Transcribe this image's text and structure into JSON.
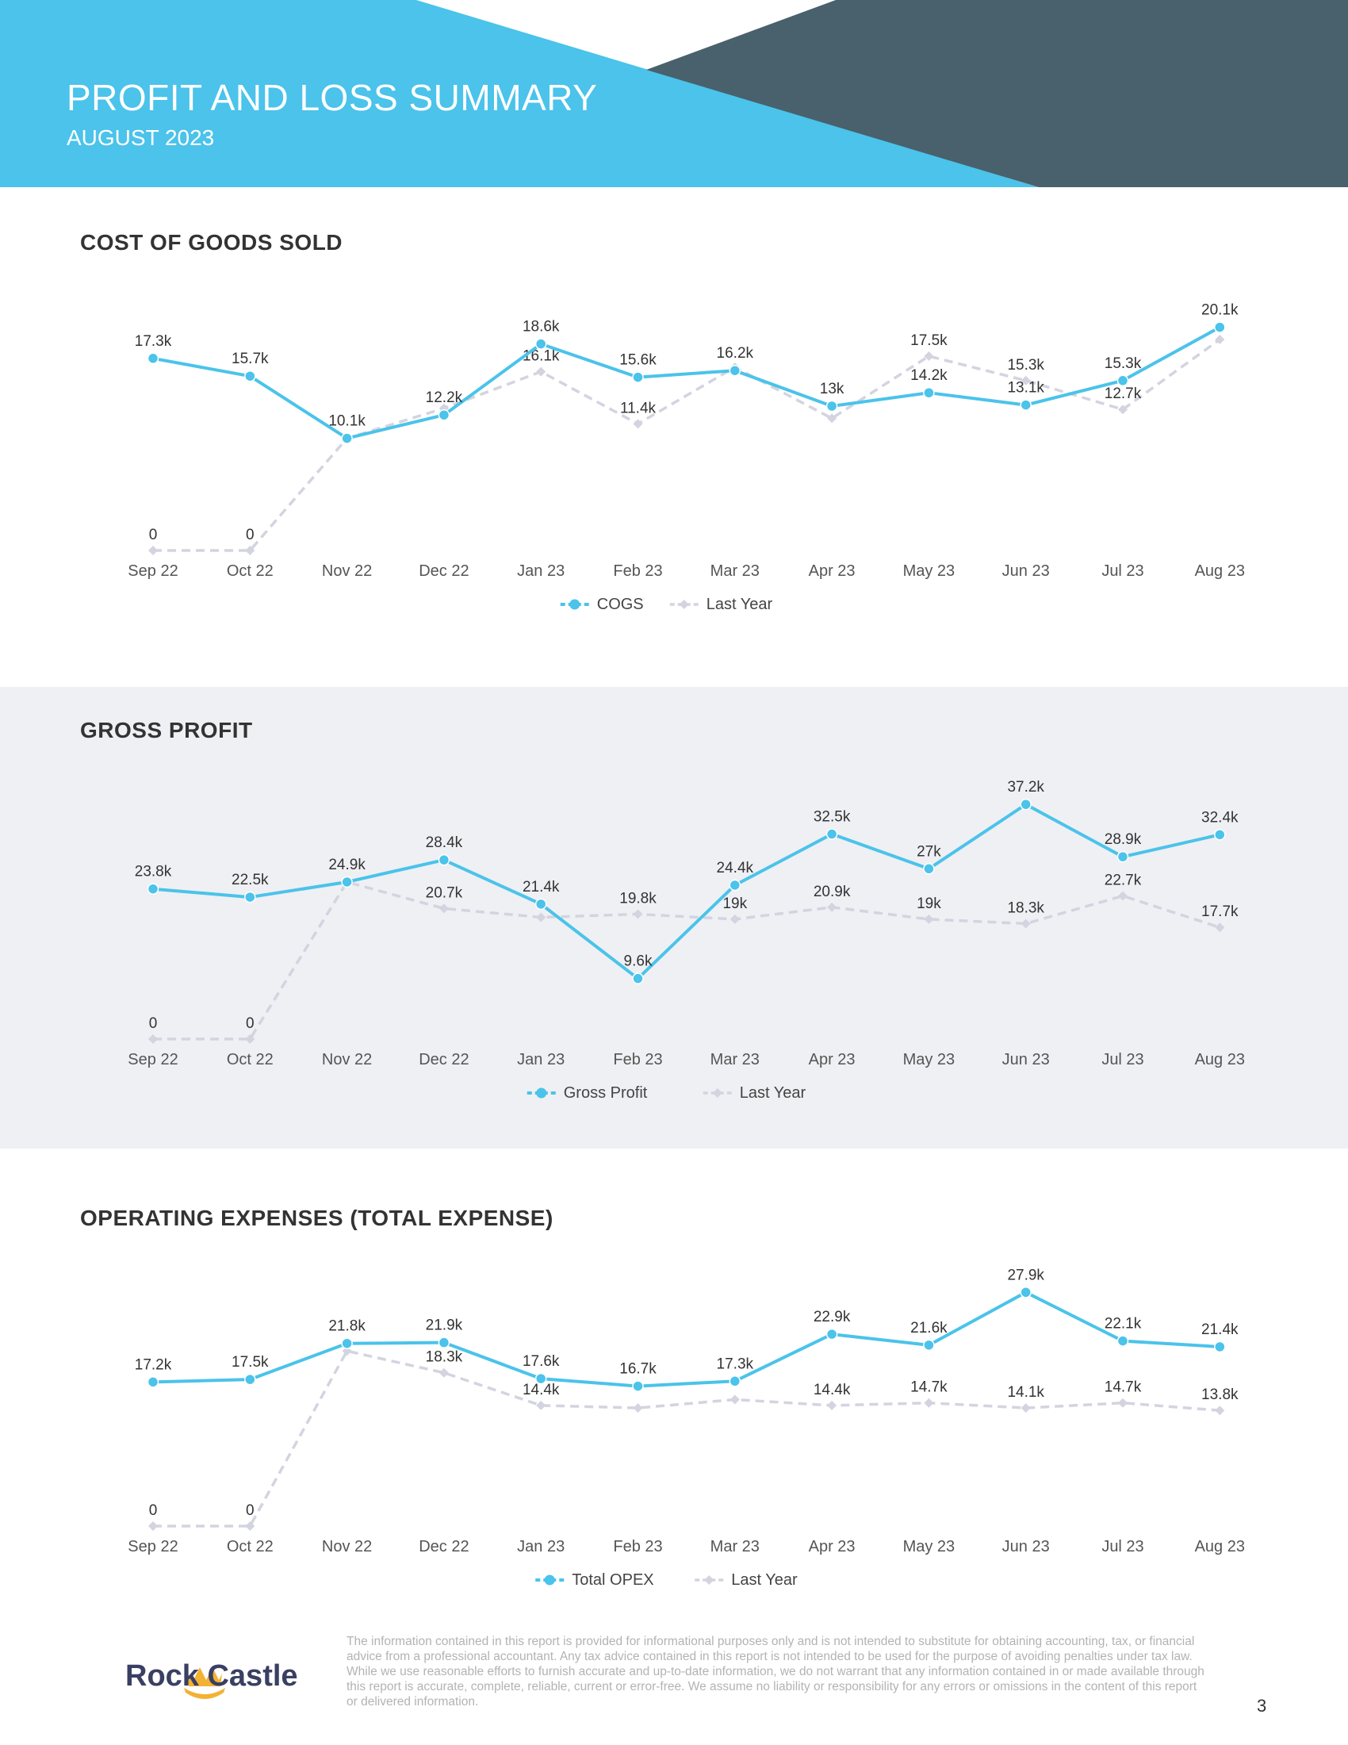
{
  "header": {
    "title": "PROFIT AND LOSS SUMMARY",
    "subtitle": "AUGUST 2023",
    "colors": {
      "primary": "#4bc3ea",
      "dark": "#48616c"
    }
  },
  "chart_data": [
    {
      "type": "line",
      "title": "COST OF GOODS SOLD",
      "categories": [
        "Sep 22",
        "Oct 22",
        "Nov 22",
        "Dec 22",
        "Jan 23",
        "Feb 23",
        "Mar 23",
        "Apr 23",
        "May 23",
        "Jun 23",
        "Jul 23",
        "Aug 23"
      ],
      "series": [
        {
          "name": "COGS",
          "values": [
            17300,
            15700,
            10100,
            12200,
            18600,
            15600,
            16200,
            13000,
            14200,
            13100,
            15300,
            20100
          ],
          "labels": [
            "17.3k",
            "15.7k",
            "10.1k",
            "12.2k",
            "18.6k",
            "15.6k",
            "16.2k",
            "13k",
            "14.2k",
            "13.1k",
            "15.3k",
            "20.1k"
          ]
        },
        {
          "name": "Last Year",
          "values": [
            0,
            0,
            10100,
            12800,
            16100,
            11400,
            16500,
            11900,
            17500,
            15300,
            12700,
            19000
          ],
          "labels": [
            "0",
            "0",
            "",
            "",
            "16.1k",
            "11.4k",
            "",
            "",
            "17.5k",
            "15.3k",
            "12.7k",
            ""
          ]
        }
      ],
      "ylim": [
        0,
        23000
      ]
    },
    {
      "type": "line",
      "title": "GROSS PROFIT",
      "categories": [
        "Sep 22",
        "Oct 22",
        "Nov 22",
        "Dec 22",
        "Jan 23",
        "Feb 23",
        "Mar 23",
        "Apr 23",
        "May 23",
        "Jun 23",
        "Jul 23",
        "Aug 23"
      ],
      "series": [
        {
          "name": "Gross Profit",
          "values": [
            23800,
            22500,
            24900,
            28400,
            21400,
            9600,
            24400,
            32500,
            27000,
            37200,
            28900,
            32400
          ],
          "labels": [
            "23.8k",
            "22.5k",
            "24.9k",
            "28.4k",
            "21.4k",
            "9.6k",
            "24.4k",
            "32.5k",
            "27k",
            "37.2k",
            "28.9k",
            "32.4k"
          ]
        },
        {
          "name": "Last Year",
          "values": [
            0,
            0,
            24900,
            20700,
            19300,
            19800,
            19000,
            20900,
            19000,
            18300,
            22700,
            17700
          ],
          "labels": [
            "0",
            "0",
            "",
            "20.7k",
            "",
            "19.8k",
            "19k",
            "20.9k",
            "19k",
            "18.3k",
            "22.7k",
            "17.7k"
          ]
        }
      ],
      "ylim": [
        0,
        42000
      ]
    },
    {
      "type": "line",
      "title": "OPERATING EXPENSES (TOTAL EXPENSE)",
      "categories": [
        "Sep 22",
        "Oct 22",
        "Nov 22",
        "Dec 22",
        "Jan 23",
        "Feb 23",
        "Mar 23",
        "Apr 23",
        "May 23",
        "Jun 23",
        "Jul 23",
        "Aug 23"
      ],
      "series": [
        {
          "name": "Total OPEX",
          "values": [
            17200,
            17500,
            21800,
            21900,
            17600,
            16700,
            17300,
            22900,
            21600,
            27900,
            22100,
            21400
          ],
          "labels": [
            "17.2k",
            "17.5k",
            "21.8k",
            "21.9k",
            "17.6k",
            "16.7k",
            "17.3k",
            "22.9k",
            "21.6k",
            "27.9k",
            "22.1k",
            "21.4k"
          ]
        },
        {
          "name": "Last Year",
          "values": [
            0,
            0,
            20900,
            18300,
            14400,
            14100,
            15100,
            14400,
            14700,
            14100,
            14700,
            13800
          ],
          "labels": [
            "0",
            "0",
            "",
            "18.3k",
            "14.4k",
            "",
            "",
            "14.4k",
            "14.7k",
            "14.1k",
            "14.7k",
            "13.8k"
          ]
        }
      ],
      "ylim": [
        0,
        32000
      ]
    }
  ],
  "footer": {
    "logo": "Rock Castle",
    "disclaimer": "The information contained in this report is provided for informational purposes only and is not intended to substitute for obtaining accounting, tax, or financial advice from a professional accountant. Any tax advice contained in this report is not intended to be used for the purpose of avoiding penalties under tax law. While we use reasonable efforts to furnish accurate and up-to-date information, we do not warrant that any information contained in or made available through this report is accurate, complete, reliable, current or error-free. We assume no liability or responsibility for any errors or omissions in the content of this report or delivered information.",
    "page_number": "3"
  }
}
